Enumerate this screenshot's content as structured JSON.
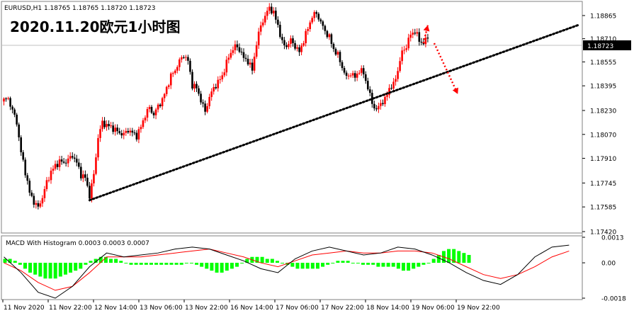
{
  "price_panel": {
    "symbol_header": "EURUSD,H1  1.18765 1.18765 1.18720 1.18723",
    "overlay_title": "2020.11.20欧元1小时图",
    "current_price_label": "1.18723",
    "price_tick_labels": [
      "1.18865",
      "1.18710",
      "1.18555",
      "1.18395",
      "1.18230",
      "1.18070",
      "1.17910",
      "1.17745",
      "1.17585",
      "1.17420"
    ]
  },
  "macd_panel": {
    "header": "MACD With Histogram 0.0003 0.0003 0.0007",
    "tick_labels": [
      "0.0013",
      "0.00",
      "-0.0018"
    ]
  },
  "time_axis": {
    "labels": [
      "11 Nov 2020",
      "11 Nov 22:00",
      "12 Nov 14:00",
      "13 Nov 06:00",
      "13 Nov 22:00",
      "16 Nov 14:00",
      "17 Nov 06:00",
      "17 Nov 22:00",
      "18 Nov 14:00",
      "19 Nov 06:00",
      "19 Nov 22:00"
    ]
  },
  "colors": {
    "bull_candle": "#ff0000",
    "bear_candle": "#000000",
    "histogram": "#00ff00",
    "macd_line": "#000000",
    "signal_line": "#ff0000",
    "trendline": "#000000",
    "projection_arrows": "#ff0000",
    "bid_line": "#c0c0c0"
  },
  "chart_data": [
    {
      "type": "candlestick",
      "title": "EURUSD,H1",
      "ylim": [
        1.1742,
        1.1895
      ],
      "yticks": [
        1.18865,
        1.1871,
        1.18555,
        1.18395,
        1.1823,
        1.1807,
        1.1791,
        1.17745,
        1.17585,
        1.1742
      ],
      "x_labels": [
        "11 Nov 2020",
        "11 Nov 22:00",
        "12 Nov 14:00",
        "13 Nov 06:00",
        "13 Nov 22:00",
        "16 Nov 14:00",
        "17 Nov 06:00",
        "17 Nov 22:00",
        "18 Nov 14:00",
        "19 Nov 06:00",
        "19 Nov 22:00"
      ],
      "last_close": 1.18723,
      "close_path": [
        [
          0,
          1.183
        ],
        [
          2,
          1.1831
        ],
        [
          4,
          1.1823
        ],
        [
          6,
          1.1815
        ],
        [
          8,
          1.1795
        ],
        [
          10,
          1.1782
        ],
        [
          12,
          1.1768
        ],
        [
          14,
          1.1762
        ],
        [
          16,
          1.1758
        ],
        [
          18,
          1.1765
        ],
        [
          20,
          1.1775
        ],
        [
          22,
          1.1782
        ],
        [
          24,
          1.1786
        ],
        [
          26,
          1.1789
        ],
        [
          28,
          1.1788
        ],
        [
          30,
          1.179
        ],
        [
          32,
          1.1793
        ],
        [
          34,
          1.1788
        ],
        [
          36,
          1.178
        ],
        [
          38,
          1.1778
        ],
        [
          40,
          1.1766
        ],
        [
          42,
          1.178
        ],
        [
          44,
          1.1805
        ],
        [
          46,
          1.1815
        ],
        [
          48,
          1.1813
        ],
        [
          50,
          1.1812
        ],
        [
          52,
          1.181
        ],
        [
          54,
          1.1808
        ],
        [
          56,
          1.1807
        ],
        [
          58,
          1.181
        ],
        [
          60,
          1.1808
        ],
        [
          62,
          1.1806
        ],
        [
          64,
          1.1812
        ],
        [
          66,
          1.182
        ],
        [
          68,
          1.1825
        ],
        [
          70,
          1.182
        ],
        [
          72,
          1.1826
        ],
        [
          74,
          1.183
        ],
        [
          76,
          1.1838
        ],
        [
          78,
          1.1846
        ],
        [
          80,
          1.185
        ],
        [
          82,
          1.1856
        ],
        [
          84,
          1.186
        ],
        [
          86,
          1.1856
        ],
        [
          88,
          1.184
        ],
        [
          90,
          1.1838
        ],
        [
          92,
          1.183
        ],
        [
          94,
          1.1822
        ],
        [
          96,
          1.1832
        ],
        [
          98,
          1.1838
        ],
        [
          100,
          1.1842
        ],
        [
          102,
          1.1846
        ],
        [
          104,
          1.1855
        ],
        [
          106,
          1.1862
        ],
        [
          108,
          1.1866
        ],
        [
          110,
          1.1864
        ],
        [
          112,
          1.1858
        ],
        [
          114,
          1.1856
        ],
        [
          116,
          1.185
        ],
        [
          118,
          1.1868
        ],
        [
          120,
          1.188
        ],
        [
          122,
          1.1886
        ],
        [
          124,
          1.1892
        ],
        [
          126,
          1.1888
        ],
        [
          128,
          1.188
        ],
        [
          130,
          1.1868
        ],
        [
          132,
          1.1866
        ],
        [
          134,
          1.187
        ],
        [
          136,
          1.1866
        ],
        [
          138,
          1.1862
        ],
        [
          140,
          1.187
        ],
        [
          142,
          1.1878
        ],
        [
          144,
          1.1886
        ],
        [
          146,
          1.1888
        ],
        [
          148,
          1.1882
        ],
        [
          150,
          1.1876
        ],
        [
          152,
          1.1872
        ],
        [
          154,
          1.1864
        ],
        [
          156,
          1.186
        ],
        [
          158,
          1.1852
        ],
        [
          160,
          1.1845
        ],
        [
          162,
          1.1848
        ],
        [
          164,
          1.1845
        ],
        [
          166,
          1.185
        ],
        [
          168,
          1.1848
        ],
        [
          170,
          1.1838
        ],
        [
          172,
          1.1828
        ],
        [
          174,
          1.1823
        ],
        [
          176,
          1.1828
        ],
        [
          178,
          1.183
        ],
        [
          180,
          1.1838
        ],
        [
          182,
          1.184
        ],
        [
          184,
          1.185
        ],
        [
          186,
          1.1862
        ],
        [
          188,
          1.1866
        ],
        [
          190,
          1.1874
        ],
        [
          192,
          1.1876
        ],
        [
          194,
          1.187
        ],
        [
          196,
          1.1868
        ],
        [
          198,
          1.1872
        ]
      ],
      "annotations": [
        {
          "kind": "dotted-trendline",
          "from": [
            40,
            1.1763
          ],
          "to": [
            268,
            1.188
          ]
        },
        {
          "kind": "dotted-arrow",
          "from": [
            196,
            1.1868
          ],
          "to": [
            198,
            1.188
          ]
        },
        {
          "kind": "dotted-arrow",
          "from": [
            201,
            1.1868
          ],
          "to": [
            212,
            1.1834
          ]
        }
      ]
    },
    {
      "type": "macd-histogram",
      "title": "MACD With Histogram",
      "params": [
        0.0003,
        0.0003,
        0.0007
      ],
      "ylim": [
        -0.0018,
        0.0013
      ],
      "yticks": [
        0.0013,
        0.0,
        -0.0018
      ],
      "histogram": [
        0.0002,
        0.0002,
        0.0001,
        -0.0001,
        -0.0003,
        -0.0005,
        -0.0006,
        -0.0007,
        -0.0008,
        -0.0008,
        -0.0008,
        -0.0007,
        -0.0006,
        -0.0005,
        -0.0004,
        -0.0003,
        -0.0001,
        0.0001,
        0.0002,
        0.0003,
        0.0003,
        0.0002,
        0.0002,
        0.0001,
        0.0,
        -0.0001,
        -0.0001,
        -0.0001,
        -0.0001,
        -0.0001,
        -0.0001,
        -0.0001,
        -0.0001,
        -0.0001,
        -0.0001,
        -0.0001,
        0.0,
        0.0,
        -0.0001,
        -0.0002,
        -0.0003,
        -0.0004,
        -0.0005,
        -0.0005,
        -0.0004,
        -0.0003,
        -0.0002,
        0.0,
        0.0002,
        0.0003,
        0.0003,
        0.0003,
        0.0002,
        0.0002,
        0.0001,
        0.0,
        -0.0001,
        -0.0002,
        -0.0003,
        -0.0003,
        -0.0003,
        -0.0003,
        -0.0003,
        -0.0002,
        -0.0001,
        0.0,
        0.0001,
        0.0001,
        0.0001,
        0.0,
        0.0,
        -0.0001,
        -0.0001,
        -0.0001,
        -0.0002,
        -0.0002,
        -0.0002,
        -0.0002,
        -0.0003,
        -0.0004,
        -0.0004,
        -0.0003,
        -0.0002,
        -0.0001,
        0.0,
        0.0002,
        0.0004,
        0.0006,
        0.0007,
        0.0007,
        0.0006,
        0.0005,
        0.0004
      ],
      "macd_path": [
        [
          0,
          0.0003
        ],
        [
          8,
          -0.0005
        ],
        [
          16,
          -0.0015
        ],
        [
          24,
          -0.0018
        ],
        [
          32,
          -0.0012
        ],
        [
          40,
          -0.0002
        ],
        [
          48,
          0.0005
        ],
        [
          56,
          0.0003
        ],
        [
          64,
          0.0004
        ],
        [
          72,
          0.0005
        ],
        [
          80,
          0.0007
        ],
        [
          88,
          0.0008
        ],
        [
          96,
          0.0007
        ],
        [
          104,
          0.0004
        ],
        [
          112,
          0.0001
        ],
        [
          120,
          -0.0003
        ],
        [
          128,
          -0.0005
        ],
        [
          136,
          0.0002
        ],
        [
          144,
          0.0006
        ],
        [
          152,
          0.0008
        ],
        [
          160,
          0.0006
        ],
        [
          168,
          0.0004
        ],
        [
          176,
          0.0005
        ],
        [
          184,
          0.0008
        ],
        [
          192,
          0.0007
        ],
        [
          200,
          0.0004
        ],
        [
          208,
          0.0
        ],
        [
          216,
          -0.0005
        ],
        [
          224,
          -0.0009
        ],
        [
          232,
          -0.0011
        ],
        [
          240,
          -0.0006
        ],
        [
          248,
          0.0003
        ],
        [
          256,
          0.0008
        ],
        [
          264,
          0.0009
        ]
      ],
      "signal_path": [
        [
          0,
          0.0
        ],
        [
          8,
          -0.0004
        ],
        [
          16,
          -0.001
        ],
        [
          24,
          -0.0014
        ],
        [
          32,
          -0.0012
        ],
        [
          40,
          -0.0005
        ],
        [
          48,
          0.0003
        ],
        [
          56,
          0.0003
        ],
        [
          64,
          0.0003
        ],
        [
          72,
          0.0004
        ],
        [
          80,
          0.0005
        ],
        [
          88,
          0.0006
        ],
        [
          96,
          0.0007
        ],
        [
          104,
          0.0005
        ],
        [
          112,
          0.0003
        ],
        [
          120,
          0.0
        ],
        [
          128,
          -0.0002
        ],
        [
          136,
          0.0001
        ],
        [
          144,
          0.0004
        ],
        [
          152,
          0.0005
        ],
        [
          160,
          0.0006
        ],
        [
          168,
          0.0005
        ],
        [
          176,
          0.0005
        ],
        [
          184,
          0.0006
        ],
        [
          192,
          0.0006
        ],
        [
          200,
          0.0005
        ],
        [
          208,
          0.0002
        ],
        [
          216,
          -0.0002
        ],
        [
          224,
          -0.0006
        ],
        [
          232,
          -0.0008
        ],
        [
          240,
          -0.0006
        ],
        [
          248,
          -0.0002
        ],
        [
          256,
          0.0003
        ],
        [
          264,
          0.0006
        ]
      ]
    }
  ]
}
